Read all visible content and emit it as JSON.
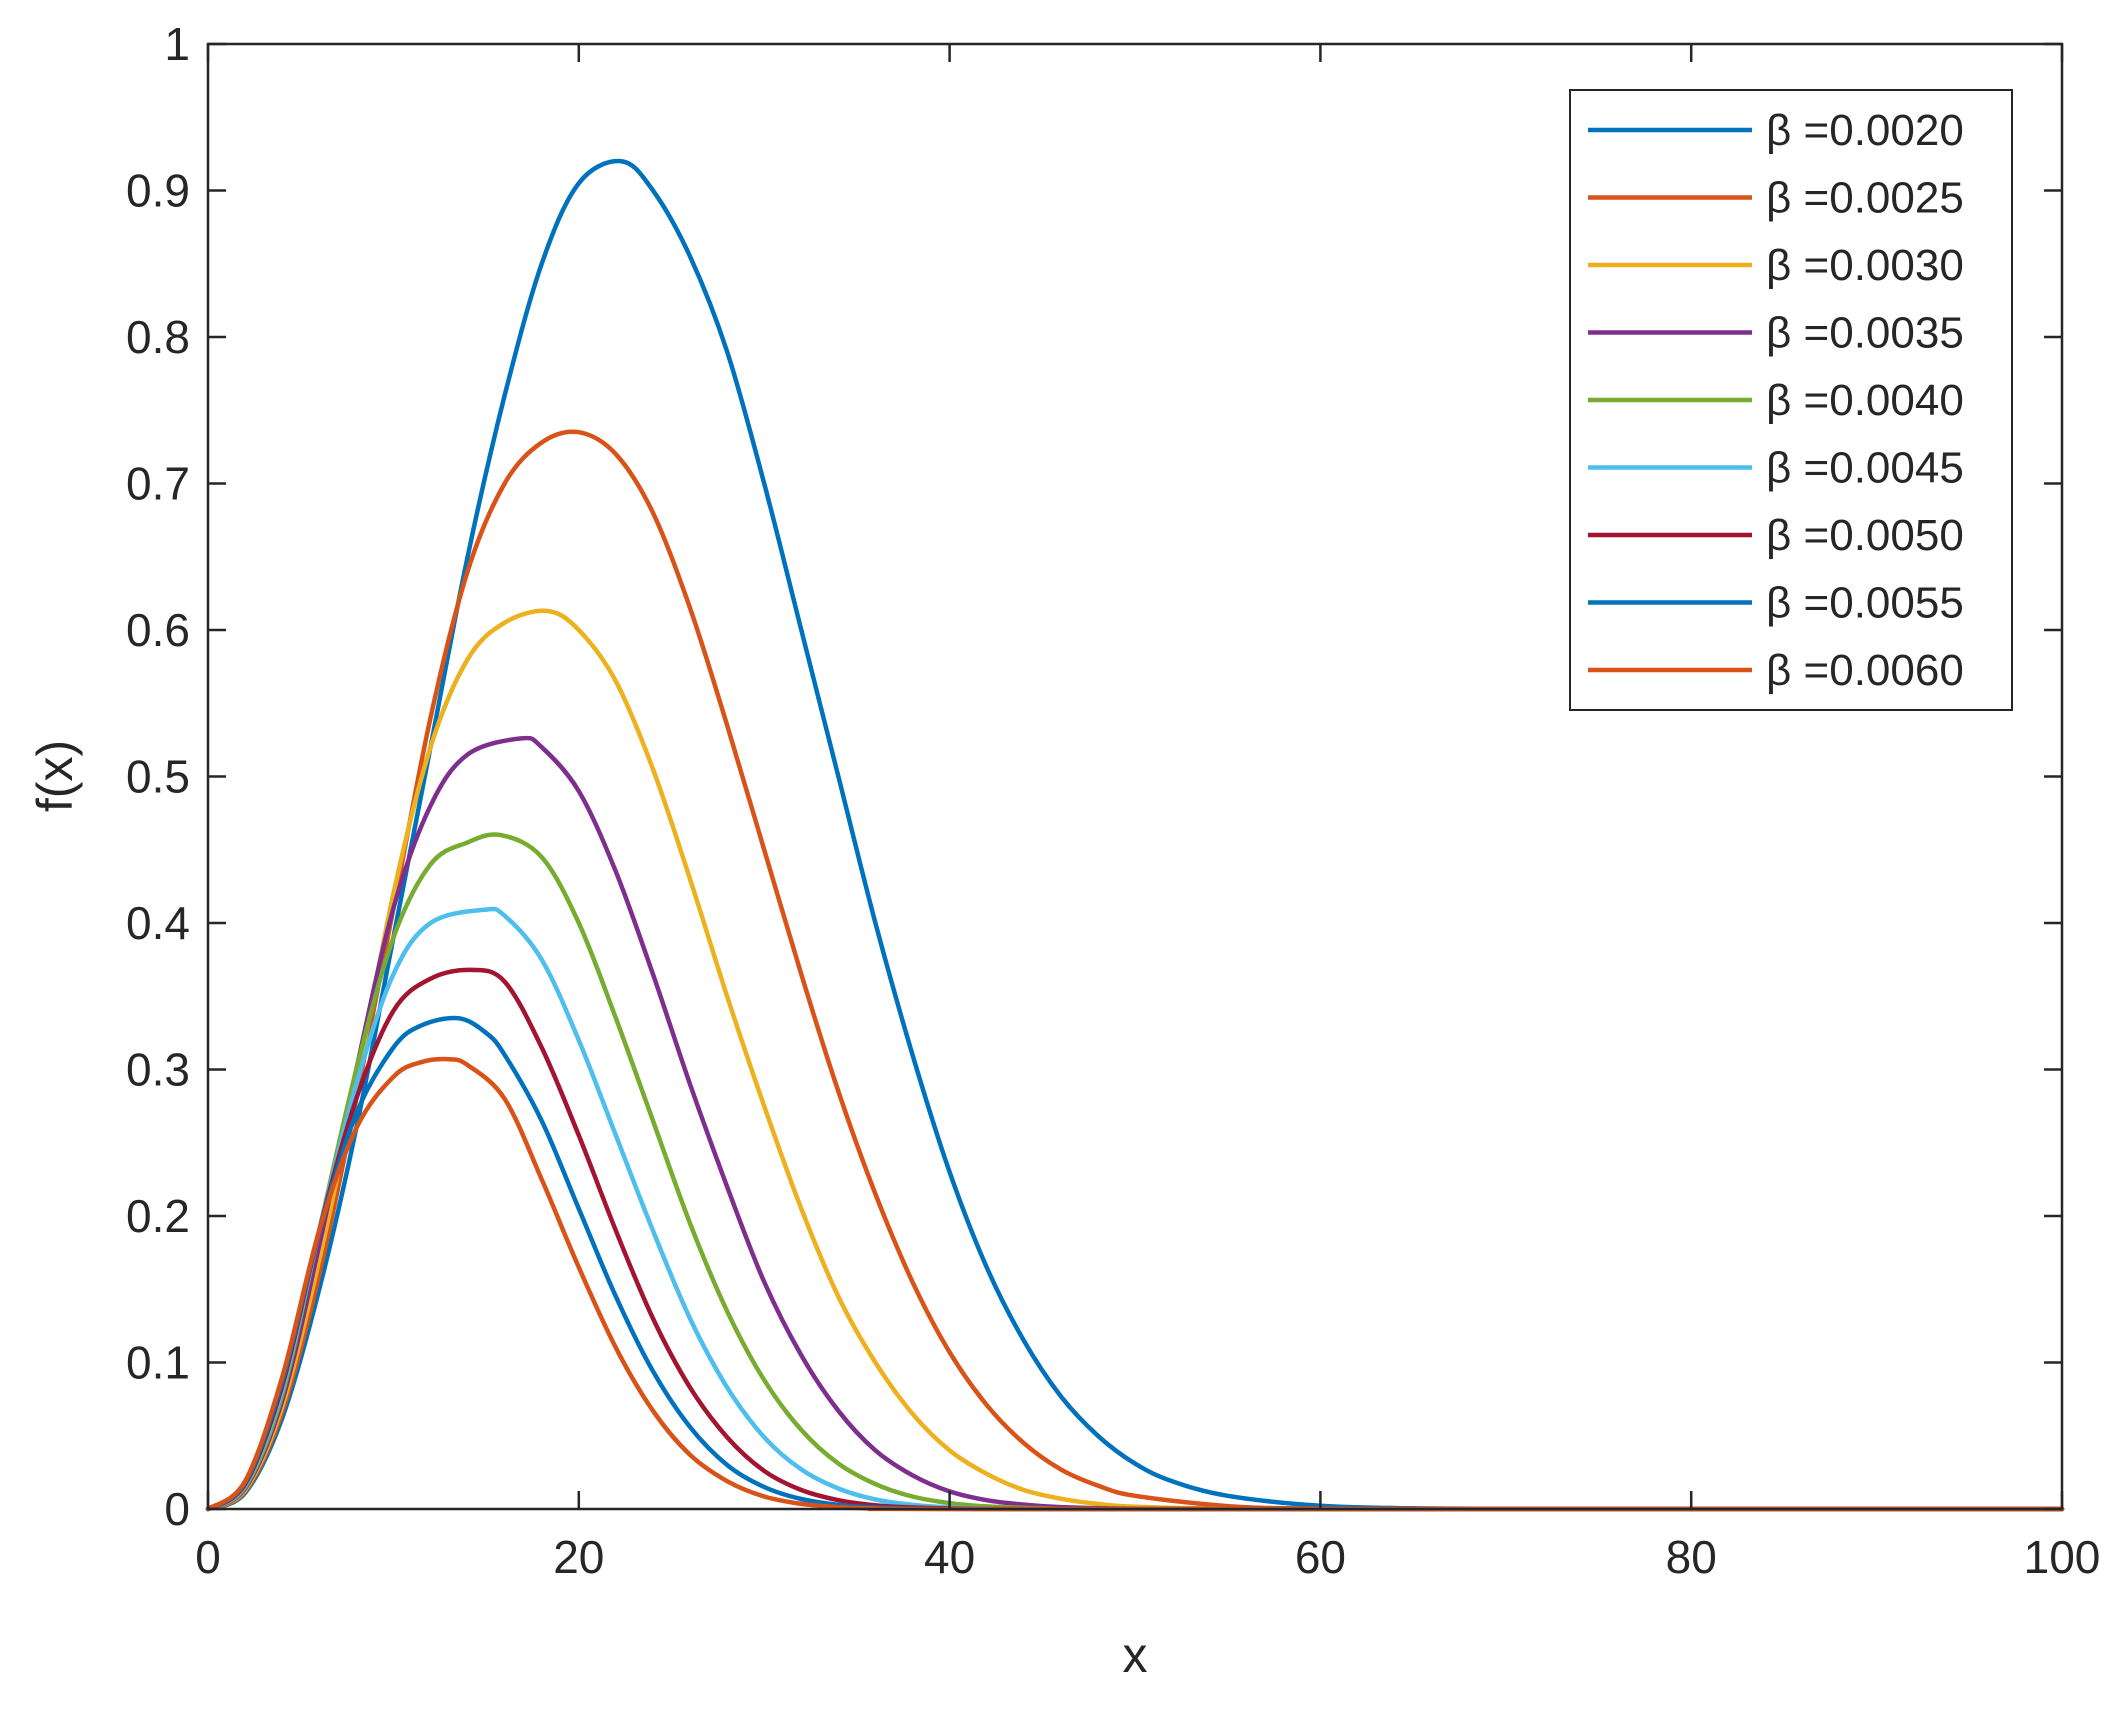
{
  "chart_data": {
    "type": "line",
    "title": "",
    "xlabel": "x",
    "ylabel": "f(x)",
    "xlim": [
      0,
      100
    ],
    "ylim": [
      0,
      1
    ],
    "xticks": [
      0,
      20,
      40,
      60,
      80,
      100
    ],
    "yticks": [
      0,
      0.1,
      0.2,
      0.3,
      0.4,
      0.5,
      0.6,
      0.7,
      0.8,
      0.9,
      1
    ],
    "xtick_labels": [
      "0",
      "20",
      "40",
      "60",
      "80",
      "100"
    ],
    "ytick_labels": [
      "0",
      "0.1",
      "0.2",
      "0.3",
      "0.4",
      "0.5",
      "0.6",
      "0.7",
      "0.8",
      "0.9",
      "1"
    ],
    "grid": false,
    "legend_position": "top-right",
    "series": [
      {
        "name": "β =0.0020",
        "color": "#0072BD",
        "points": [
          [
            0,
            0
          ],
          [
            2,
            0.011
          ],
          [
            4,
            0.062
          ],
          [
            6,
            0.15
          ],
          [
            8,
            0.26
          ],
          [
            10,
            0.39
          ],
          [
            12,
            0.52
          ],
          [
            14,
            0.65
          ],
          [
            16,
            0.76
          ],
          [
            18,
            0.85
          ],
          [
            20,
            0.905
          ],
          [
            22.3,
            0.92
          ],
          [
            24,
            0.9
          ],
          [
            26,
            0.855
          ],
          [
            28,
            0.79
          ],
          [
            30,
            0.7
          ],
          [
            32,
            0.6
          ],
          [
            34,
            0.5
          ],
          [
            36,
            0.4
          ],
          [
            38,
            0.31
          ],
          [
            40,
            0.23
          ],
          [
            42,
            0.165
          ],
          [
            44,
            0.115
          ],
          [
            46,
            0.077
          ],
          [
            48,
            0.05
          ],
          [
            50,
            0.031
          ],
          [
            52,
            0.019
          ],
          [
            55,
            0.009
          ],
          [
            60,
            0.0022
          ],
          [
            65,
            0.0005
          ],
          [
            70,
            0.0001
          ],
          [
            75,
            0
          ],
          [
            80,
            0
          ],
          [
            90,
            0
          ],
          [
            100,
            0
          ]
        ]
      },
      {
        "name": "β =0.0025",
        "color": "#D95319",
        "points": [
          [
            0,
            0
          ],
          [
            2,
            0.012
          ],
          [
            4,
            0.066
          ],
          [
            6,
            0.16
          ],
          [
            8,
            0.28
          ],
          [
            10,
            0.41
          ],
          [
            12,
            0.54
          ],
          [
            14,
            0.64
          ],
          [
            16,
            0.7
          ],
          [
            18,
            0.728
          ],
          [
            20,
            0.735
          ],
          [
            22,
            0.72
          ],
          [
            24,
            0.68
          ],
          [
            26,
            0.615
          ],
          [
            28,
            0.535
          ],
          [
            30,
            0.45
          ],
          [
            32,
            0.365
          ],
          [
            34,
            0.285
          ],
          [
            36,
            0.215
          ],
          [
            38,
            0.155
          ],
          [
            40,
            0.107
          ],
          [
            42,
            0.071
          ],
          [
            44,
            0.045
          ],
          [
            46,
            0.027
          ],
          [
            48,
            0.016
          ],
          [
            50,
            0.009
          ],
          [
            55,
            0.002
          ],
          [
            60,
            0.0003
          ],
          [
            70,
            0
          ],
          [
            80,
            0
          ],
          [
            100,
            0
          ]
        ]
      },
      {
        "name": "β =0.0030",
        "color": "#EDB120",
        "points": [
          [
            0,
            0
          ],
          [
            2,
            0.013
          ],
          [
            4,
            0.07
          ],
          [
            6,
            0.17
          ],
          [
            8,
            0.29
          ],
          [
            10,
            0.42
          ],
          [
            12,
            0.52
          ],
          [
            14,
            0.58
          ],
          [
            16,
            0.605
          ],
          [
            18.3,
            0.613
          ],
          [
            20,
            0.6
          ],
          [
            22,
            0.565
          ],
          [
            24,
            0.505
          ],
          [
            26,
            0.43
          ],
          [
            28,
            0.35
          ],
          [
            30,
            0.275
          ],
          [
            32,
            0.205
          ],
          [
            34,
            0.145
          ],
          [
            36,
            0.1
          ],
          [
            38,
            0.065
          ],
          [
            40,
            0.04
          ],
          [
            42,
            0.024
          ],
          [
            44,
            0.013
          ],
          [
            46,
            0.007
          ],
          [
            48,
            0.0035
          ],
          [
            50,
            0.0016
          ],
          [
            55,
            0.0002
          ],
          [
            60,
            0
          ],
          [
            80,
            0
          ],
          [
            100,
            0
          ]
        ]
      },
      {
        "name": "β =0.0035",
        "color": "#7E2F8E",
        "points": [
          [
            0,
            0
          ],
          [
            2,
            0.014
          ],
          [
            4,
            0.074
          ],
          [
            6,
            0.18
          ],
          [
            8,
            0.3
          ],
          [
            10,
            0.41
          ],
          [
            12,
            0.48
          ],
          [
            14,
            0.515
          ],
          [
            16.9,
            0.526
          ],
          [
            18,
            0.52
          ],
          [
            20,
            0.49
          ],
          [
            22,
            0.435
          ],
          [
            24,
            0.365
          ],
          [
            26,
            0.29
          ],
          [
            28,
            0.22
          ],
          [
            30,
            0.155
          ],
          [
            32,
            0.105
          ],
          [
            34,
            0.067
          ],
          [
            36,
            0.04
          ],
          [
            38,
            0.023
          ],
          [
            40,
            0.012
          ],
          [
            42,
            0.006
          ],
          [
            44,
            0.003
          ],
          [
            46,
            0.0013
          ],
          [
            50,
            0.0002
          ],
          [
            55,
            0
          ],
          [
            80,
            0
          ],
          [
            100,
            0
          ]
        ]
      },
      {
        "name": "β =0.0040",
        "color": "#77AC30",
        "points": [
          [
            0,
            0
          ],
          [
            2,
            0.015
          ],
          [
            4,
            0.078
          ],
          [
            6,
            0.19
          ],
          [
            8,
            0.3
          ],
          [
            10,
            0.39
          ],
          [
            12,
            0.44
          ],
          [
            14,
            0.455
          ],
          [
            15.8,
            0.46
          ],
          [
            18,
            0.445
          ],
          [
            20,
            0.4
          ],
          [
            22,
            0.335
          ],
          [
            24,
            0.265
          ],
          [
            26,
            0.195
          ],
          [
            28,
            0.135
          ],
          [
            30,
            0.088
          ],
          [
            32,
            0.054
          ],
          [
            34,
            0.031
          ],
          [
            36,
            0.017
          ],
          [
            38,
            0.0085
          ],
          [
            40,
            0.004
          ],
          [
            42,
            0.0018
          ],
          [
            45,
            0.0005
          ],
          [
            50,
            0
          ],
          [
            80,
            0
          ],
          [
            100,
            0
          ]
        ]
      },
      {
        "name": "β =0.0045",
        "color": "#4DBEEE",
        "points": [
          [
            0,
            0
          ],
          [
            2,
            0.016
          ],
          [
            4,
            0.081
          ],
          [
            6,
            0.19
          ],
          [
            8,
            0.29
          ],
          [
            10,
            0.365
          ],
          [
            12,
            0.4
          ],
          [
            14.9,
            0.409
          ],
          [
            16,
            0.405
          ],
          [
            18,
            0.375
          ],
          [
            20,
            0.32
          ],
          [
            22,
            0.255
          ],
          [
            24,
            0.19
          ],
          [
            26,
            0.13
          ],
          [
            28,
            0.083
          ],
          [
            30,
            0.049
          ],
          [
            32,
            0.027
          ],
          [
            34,
            0.014
          ],
          [
            36,
            0.0065
          ],
          [
            38,
            0.0028
          ],
          [
            40,
            0.0011
          ],
          [
            43,
            0.0002
          ],
          [
            50,
            0
          ],
          [
            80,
            0
          ],
          [
            100,
            0
          ]
        ]
      },
      {
        "name": "β =0.0050",
        "color": "#A2142F",
        "points": [
          [
            0,
            0
          ],
          [
            2,
            0.017
          ],
          [
            4,
            0.084
          ],
          [
            6,
            0.19
          ],
          [
            8,
            0.28
          ],
          [
            10,
            0.34
          ],
          [
            12,
            0.362
          ],
          [
            14.2,
            0.368
          ],
          [
            16,
            0.36
          ],
          [
            18,
            0.315
          ],
          [
            20,
            0.255
          ],
          [
            22,
            0.19
          ],
          [
            24,
            0.13
          ],
          [
            26,
            0.083
          ],
          [
            28,
            0.049
          ],
          [
            30,
            0.026
          ],
          [
            32,
            0.013
          ],
          [
            34,
            0.006
          ],
          [
            36,
            0.0025
          ],
          [
            38,
            0.001
          ],
          [
            42,
            0.0001
          ],
          [
            50,
            0
          ],
          [
            80,
            0
          ],
          [
            100,
            0
          ]
        ]
      },
      {
        "name": "β =0.0055",
        "color": "#0072BD",
        "points": [
          [
            0,
            0
          ],
          [
            2,
            0.018
          ],
          [
            4,
            0.087
          ],
          [
            6,
            0.19
          ],
          [
            8,
            0.27
          ],
          [
            10,
            0.315
          ],
          [
            11.5,
            0.33
          ],
          [
            13.5,
            0.335
          ],
          [
            15,
            0.325
          ],
          [
            16,
            0.31
          ],
          [
            18,
            0.265
          ],
          [
            20,
            0.205
          ],
          [
            22,
            0.145
          ],
          [
            24,
            0.094
          ],
          [
            26,
            0.056
          ],
          [
            28,
            0.03
          ],
          [
            30,
            0.015
          ],
          [
            32,
            0.0068
          ],
          [
            34,
            0.0028
          ],
          [
            36,
            0.001
          ],
          [
            40,
            0.0001
          ],
          [
            50,
            0
          ],
          [
            80,
            0
          ],
          [
            100,
            0
          ]
        ]
      },
      {
        "name": "β =0.0060",
        "color": "#D95319",
        "points": [
          [
            0,
            0
          ],
          [
            2,
            0.019
          ],
          [
            4,
            0.09
          ],
          [
            6,
            0.19
          ],
          [
            8,
            0.26
          ],
          [
            10,
            0.295
          ],
          [
            11.5,
            0.305
          ],
          [
            13,
            0.307
          ],
          [
            14,
            0.303
          ],
          [
            16,
            0.28
          ],
          [
            18,
            0.225
          ],
          [
            20,
            0.165
          ],
          [
            22,
            0.11
          ],
          [
            24,
            0.067
          ],
          [
            26,
            0.037
          ],
          [
            28,
            0.019
          ],
          [
            30,
            0.0085
          ],
          [
            32,
            0.0035
          ],
          [
            34,
            0.0013
          ],
          [
            36,
            0.0004
          ],
          [
            40,
            0
          ],
          [
            80,
            0
          ],
          [
            100,
            0
          ]
        ]
      }
    ]
  }
}
